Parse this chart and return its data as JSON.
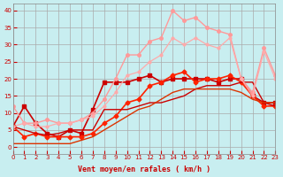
{
  "title": "",
  "xlabel": "Vent moyen/en rafales ( km/h )",
  "ylabel": "",
  "background_color": "#c8eef0",
  "grid_color": "#aaaaaa",
  "xlim": [
    0,
    23
  ],
  "ylim": [
    -2,
    42
  ],
  "yticks": [
    0,
    5,
    10,
    15,
    20,
    25,
    30,
    35,
    40
  ],
  "xticks": [
    0,
    1,
    2,
    3,
    4,
    5,
    6,
    7,
    8,
    9,
    10,
    11,
    12,
    13,
    14,
    15,
    16,
    17,
    18,
    19,
    20,
    21,
    22,
    23
  ],
  "series": [
    {
      "x": [
        0,
        1,
        2,
        3,
        4,
        5,
        6,
        7,
        8,
        9,
        10,
        11,
        12,
        13,
        14,
        15,
        16,
        17,
        18,
        19,
        20,
        21,
        22,
        23
      ],
      "y": [
        6,
        12,
        7,
        4,
        3,
        5,
        4,
        11,
        19,
        19,
        19,
        20,
        21,
        19,
        20,
        20,
        20,
        20,
        19,
        20,
        20,
        15,
        13,
        13
      ],
      "color": "#cc0000",
      "marker": "s",
      "markersize": 2.5,
      "linewidth": 1.2,
      "linestyle": "-"
    },
    {
      "x": [
        0,
        1,
        2,
        3,
        4,
        5,
        6,
        7,
        8,
        9,
        10,
        11,
        12,
        13,
        14,
        15,
        16,
        17,
        18,
        19,
        20,
        21,
        22,
        23
      ],
      "y": [
        6,
        3,
        4,
        3,
        3,
        3,
        3,
        4,
        7,
        9,
        13,
        14,
        18,
        19,
        21,
        22,
        19,
        20,
        20,
        21,
        19,
        15,
        12,
        12
      ],
      "color": "#ff2200",
      "marker": "D",
      "markersize": 2.5,
      "linewidth": 1.2,
      "linestyle": "-"
    },
    {
      "x": [
        0,
        2,
        3,
        4,
        5,
        6,
        7,
        8,
        9,
        10,
        11,
        12,
        13,
        14,
        15,
        16,
        17,
        18,
        19,
        20,
        21,
        22,
        23
      ],
      "y": [
        6,
        4,
        3.5,
        4,
        5,
        5,
        5,
        11,
        11,
        11,
        12,
        13,
        13,
        14,
        15,
        17,
        18,
        18,
        18,
        19,
        19,
        13,
        12
      ],
      "color": "#cc0000",
      "marker": null,
      "markersize": 0,
      "linewidth": 1.0,
      "linestyle": "-"
    },
    {
      "x": [
        0,
        1,
        2,
        3,
        4,
        5,
        6,
        7,
        8,
        9,
        10,
        11,
        12,
        13,
        14,
        15,
        16,
        17,
        18,
        19,
        20,
        21,
        22,
        23
      ],
      "y": [
        12,
        7,
        7,
        8,
        7,
        7,
        8,
        10,
        14,
        20,
        27,
        27,
        31,
        32,
        40,
        37,
        38,
        35,
        34,
        33,
        20,
        16,
        29,
        21
      ],
      "color": "#ff9999",
      "marker": "o",
      "markersize": 2.5,
      "linewidth": 1.0,
      "linestyle": "-"
    },
    {
      "x": [
        0,
        1,
        2,
        3,
        4,
        5,
        6,
        7,
        8,
        9,
        10,
        11,
        12,
        13,
        14,
        15,
        16,
        17,
        18,
        19,
        20,
        21,
        22,
        23
      ],
      "y": [
        6,
        7,
        6,
        6,
        7,
        7,
        8,
        9,
        12,
        16,
        21,
        22,
        25,
        27,
        32,
        30,
        32,
        30,
        29,
        32,
        20,
        15,
        28,
        20
      ],
      "color": "#ffaaaa",
      "marker": "o",
      "markersize": 2.0,
      "linewidth": 0.9,
      "linestyle": "-"
    },
    {
      "x": [
        0,
        1,
        2,
        3,
        4,
        5,
        6,
        7,
        8,
        9,
        10,
        11,
        12,
        13,
        14,
        15,
        16,
        17,
        18,
        19,
        20,
        21,
        22,
        23
      ],
      "y": [
        1,
        1,
        1,
        1,
        1,
        1,
        2,
        3,
        5,
        7,
        9,
        11,
        12,
        14,
        16,
        17,
        17,
        17,
        17,
        17,
        16,
        14,
        13,
        13
      ],
      "color": "#dd3300",
      "marker": null,
      "markersize": 0,
      "linewidth": 1.0,
      "linestyle": "-"
    }
  ]
}
